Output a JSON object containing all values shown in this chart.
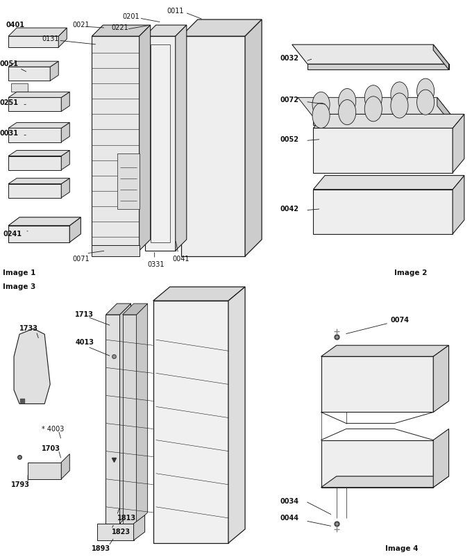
{
  "bg": "#ffffff",
  "line_color": "#1a1a1a",
  "label_color": "#111111",
  "border_color": "#555555",
  "image_labels": [
    "Image 1",
    "Image 2",
    "Image 3",
    "Image 4"
  ],
  "image1_parts": [
    "0401",
    "0131",
    "0021",
    "0201",
    "0221",
    "0011",
    "0051",
    "0251",
    "0031",
    "0241",
    "0071",
    "0331",
    "0041"
  ],
  "image2_parts": [
    "0032",
    "0072",
    "0052",
    "0042"
  ],
  "image3_parts": [
    "1713",
    "4013",
    "1733",
    "4003",
    "1703",
    "1793",
    "1813",
    "1823",
    "1893"
  ],
  "image4_parts": [
    "0074",
    "0034",
    "0044"
  ]
}
